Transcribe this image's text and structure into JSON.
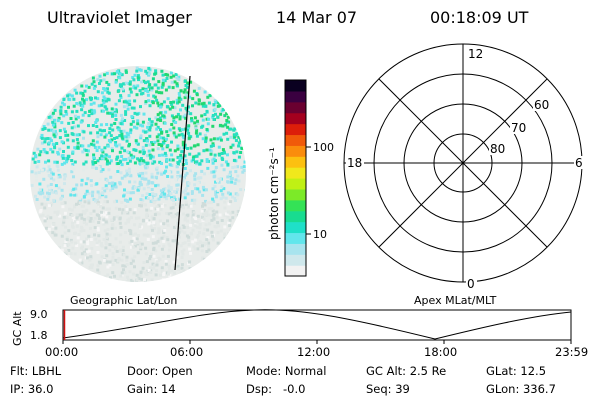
{
  "header": {
    "instrument": "Ultraviolet Imager",
    "date": "14 Mar 07",
    "time": "00:18:09 UT"
  },
  "colorbar": {
    "unit_label": "photon cm⁻²s⁻¹",
    "ticks": [
      "100",
      "10"
    ],
    "colors": [
      "#f2f2f2",
      "#cfe8ec",
      "#a8e4ee",
      "#62e6ec",
      "#1fe0c8",
      "#18dc90",
      "#34e256",
      "#7cea28",
      "#c0f014",
      "#f0e81c",
      "#fcc010",
      "#fa8c0c",
      "#f05a0a",
      "#dc1e0a",
      "#a4001e",
      "#6a0030",
      "#3a0040",
      "#0a0020"
    ]
  },
  "polar": {
    "mlt_labels": [
      "12",
      "18",
      "6",
      "0"
    ],
    "lat_labels": [
      "60",
      "70",
      "80"
    ]
  },
  "timeline": {
    "ylabel": "GC Alt",
    "yticks": [
      "9.0",
      "1.8"
    ],
    "left_label": "Geographic Lat/Lon",
    "right_label": "Apex MLat/MLT",
    "xticks": [
      "00:00",
      "06:00",
      "12:00",
      "18:00",
      "23:59"
    ]
  },
  "info": {
    "row1": [
      {
        "label": "Flt:",
        "value": "LBHL"
      },
      {
        "label": "Door:",
        "value": "Open"
      },
      {
        "label": "Mode:",
        "value": "Normal"
      },
      {
        "label": "GC Alt:",
        "value": "2.5 Re"
      },
      {
        "label": "GLat:",
        "value": "12.5"
      }
    ],
    "row2": [
      {
        "label": "IP:",
        "value": "36.0"
      },
      {
        "label": "Gain:",
        "value": "14"
      },
      {
        "label": "Dsp:",
        "value": "-0.0"
      },
      {
        "label": "Seq:",
        "value": "39"
      },
      {
        "label": "GLon:",
        "value": "336.7"
      }
    ]
  }
}
